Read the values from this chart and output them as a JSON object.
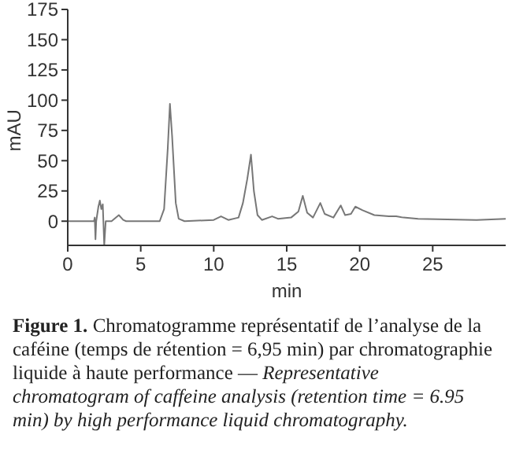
{
  "chart_data": {
    "type": "line",
    "xlabel": "min",
    "ylabel": "mAU",
    "xlim": [
      0,
      30
    ],
    "ylim": [
      -20,
      175
    ],
    "xticks": [
      0,
      5,
      10,
      15,
      20,
      25
    ],
    "yticks": [
      0,
      25,
      50,
      75,
      100,
      125,
      150,
      175
    ],
    "grid": false,
    "series": [
      {
        "color": "#777777",
        "x": [
          0,
          1.8,
          1.85,
          1.9,
          1.95,
          2.1,
          2.2,
          2.3,
          2.4,
          2.5,
          2.6,
          3.0,
          3.5,
          3.8,
          4,
          6.3,
          6.6,
          6.85,
          7.0,
          7.15,
          7.4,
          7.6,
          8,
          10,
          10.5,
          11,
          11.7,
          12.0,
          12.3,
          12.55,
          12.75,
          13.0,
          13.3,
          14,
          14.4,
          15.3,
          15.8,
          16.1,
          16.4,
          16.8,
          17.3,
          17.6,
          18.2,
          18.7,
          19.0,
          19.4,
          19.7,
          20.2,
          21,
          22,
          22.5,
          23,
          24,
          28,
          30
        ],
        "values": [
          0,
          0,
          3,
          -15,
          0,
          12,
          17,
          10,
          14,
          -20,
          0,
          0,
          5,
          1,
          0,
          0,
          10,
          60,
          97,
          70,
          15,
          2,
          0,
          1,
          4,
          1,
          3,
          15,
          35,
          55,
          25,
          5,
          1,
          4,
          2,
          3,
          8,
          21,
          7,
          3,
          15,
          6,
          3,
          13,
          5,
          6,
          12,
          9,
          5,
          4,
          4,
          3,
          2,
          1,
          2
        ]
      }
    ],
    "annotations": [
      "Figure 1.",
      "Chromatogramme représentatif de l’analyse de la caféine (temps de rétention = 6,95 min) par chromatographie liquide à haute performance —",
      "Representative chromatogram of caffeine analysis (retention time = 6.95 min) by high performance liquid chromatography."
    ]
  }
}
